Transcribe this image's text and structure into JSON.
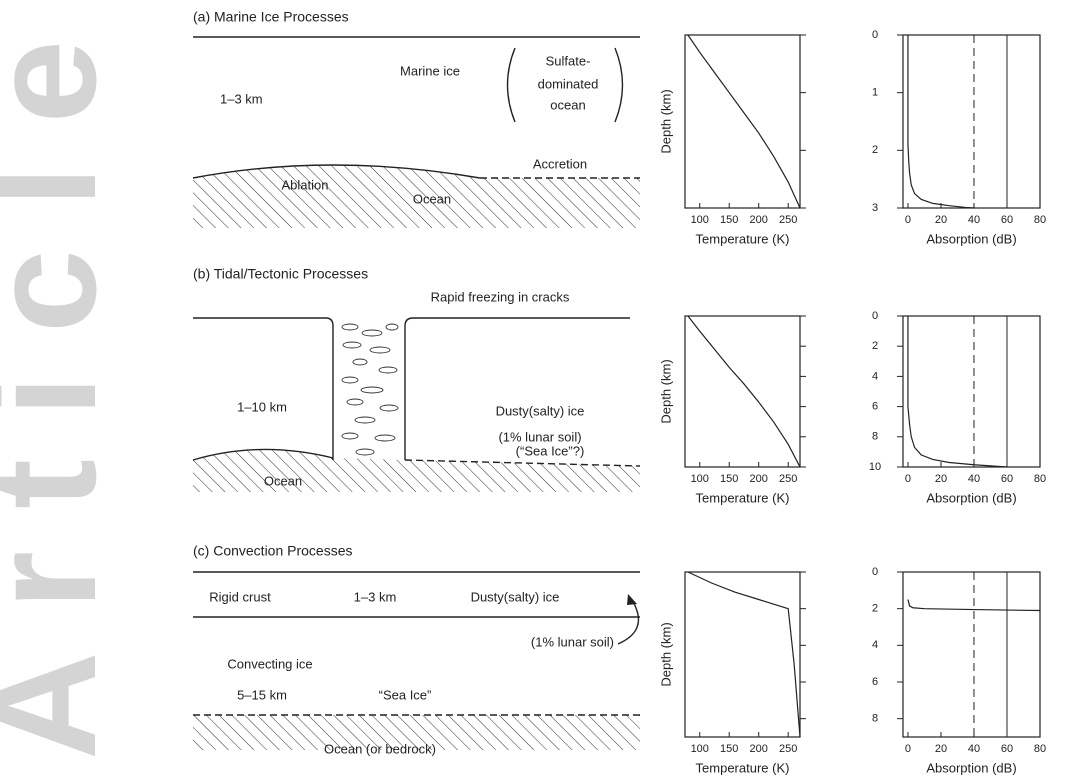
{
  "watermark": "Article",
  "diagrams": [
    {
      "title": "(a) Marine Ice Processes",
      "labels": [
        "Marine ice",
        "Sulfate-",
        "dominated",
        "ocean",
        "1–3 km",
        "Ablation",
        "Ocean",
        "Accretion"
      ]
    },
    {
      "title": "(b) Tidal/Tectonic Processes",
      "labels": [
        "Rapid freezing in cracks",
        "1–10 km",
        "Dusty(salty) ice",
        "(1% lunar soil)",
        "(“Sea Ice”?)",
        "Ocean"
      ]
    },
    {
      "title": "(c) Convection Processes",
      "labels": [
        "Rigid crust",
        "1–3 km",
        "Dusty(salty) ice",
        "(1% lunar soil)",
        "Convecting ice",
        "5–15 km",
        "“Sea Ice”",
        "Ocean (or bedrock)"
      ]
    }
  ],
  "chart_data": [
    {
      "type": "line",
      "xlabel": "Temperature (K)",
      "ylabel": "Depth (km)",
      "x": [
        80,
        100,
        125,
        150,
        175,
        200,
        225,
        250,
        270
      ],
      "values": [
        0,
        0.3,
        0.65,
        1.0,
        1.35,
        1.7,
        2.1,
        2.55,
        3
      ],
      "xlim": [
        75,
        270
      ],
      "xticks": [
        100,
        150,
        200,
        250
      ],
      "ylim": [
        3,
        0
      ],
      "yticks": [
        0,
        1,
        2,
        3
      ],
      "color": "#222"
    },
    {
      "type": "line",
      "xlabel": "Absorption (dB)",
      "x": [
        0,
        0,
        0.5,
        1,
        2,
        4,
        8,
        15,
        25,
        35,
        40
      ],
      "values": [
        0,
        1.9,
        2.2,
        2.4,
        2.6,
        2.75,
        2.85,
        2.92,
        2.96,
        2.99,
        3
      ],
      "xlim": [
        -3,
        80
      ],
      "xticks": [
        0,
        20,
        40,
        60,
        80
      ],
      "ylim": [
        3,
        0
      ],
      "yticks": [
        0,
        1,
        2,
        3
      ],
      "color": "#222",
      "vlines": [
        {
          "value": 40,
          "style": "dashed"
        },
        {
          "value": 60,
          "style": "solid"
        }
      ]
    },
    {
      "type": "line",
      "xlabel": "Temperature (K)",
      "ylabel": "Depth (km)",
      "x": [
        80,
        100,
        125,
        150,
        175,
        200,
        225,
        250,
        270
      ],
      "values": [
        0,
        1.0,
        2.2,
        3.4,
        4.5,
        5.7,
        7.0,
        8.5,
        10
      ],
      "xlim": [
        75,
        270
      ],
      "xticks": [
        100,
        150,
        200,
        250
      ],
      "ylim": [
        10,
        0
      ],
      "yticks": [
        0,
        2,
        4,
        6,
        8,
        10
      ],
      "color": "#222"
    },
    {
      "type": "line",
      "xlabel": "Absorption (dB)",
      "x": [
        0,
        0,
        1,
        2,
        4,
        8,
        15,
        25,
        40,
        60
      ],
      "values": [
        0,
        6,
        7.2,
        8.0,
        8.7,
        9.2,
        9.5,
        9.7,
        9.85,
        10
      ],
      "xlim": [
        -3,
        80
      ],
      "xticks": [
        0,
        20,
        40,
        60,
        80
      ],
      "ylim": [
        10,
        0
      ],
      "yticks": [
        0,
        2,
        4,
        6,
        8,
        10
      ],
      "color": "#222",
      "vlines": [
        {
          "value": 40,
          "style": "dashed"
        },
        {
          "value": 60,
          "style": "solid"
        }
      ]
    },
    {
      "type": "line",
      "xlabel": "Temperature (K)",
      "ylabel": "Depth (km)",
      "x": [
        80,
        120,
        160,
        200,
        250,
        260,
        270
      ],
      "values": [
        0,
        0.6,
        1.1,
        1.5,
        2.0,
        5.0,
        9
      ],
      "xlim": [
        75,
        270
      ],
      "xticks": [
        100,
        150,
        200,
        250
      ],
      "ylim": [
        9,
        0
      ],
      "yticks": [
        0,
        2,
        4,
        6,
        8
      ],
      "color": "#222"
    },
    {
      "type": "line",
      "xlabel": "Absorption (dB)",
      "x": [
        0,
        1,
        3,
        10,
        40,
        80
      ],
      "values": [
        1.5,
        1.85,
        1.95,
        2.0,
        2.05,
        2.1
      ],
      "xlim": [
        -3,
        80
      ],
      "xticks": [
        0,
        20,
        40,
        60,
        80
      ],
      "ylim": [
        9,
        0
      ],
      "yticks": [
        0,
        2,
        4,
        6,
        8
      ],
      "color": "#222",
      "vlines": [
        {
          "value": 40,
          "style": "dashed"
        },
        {
          "value": 60,
          "style": "solid"
        }
      ]
    }
  ]
}
